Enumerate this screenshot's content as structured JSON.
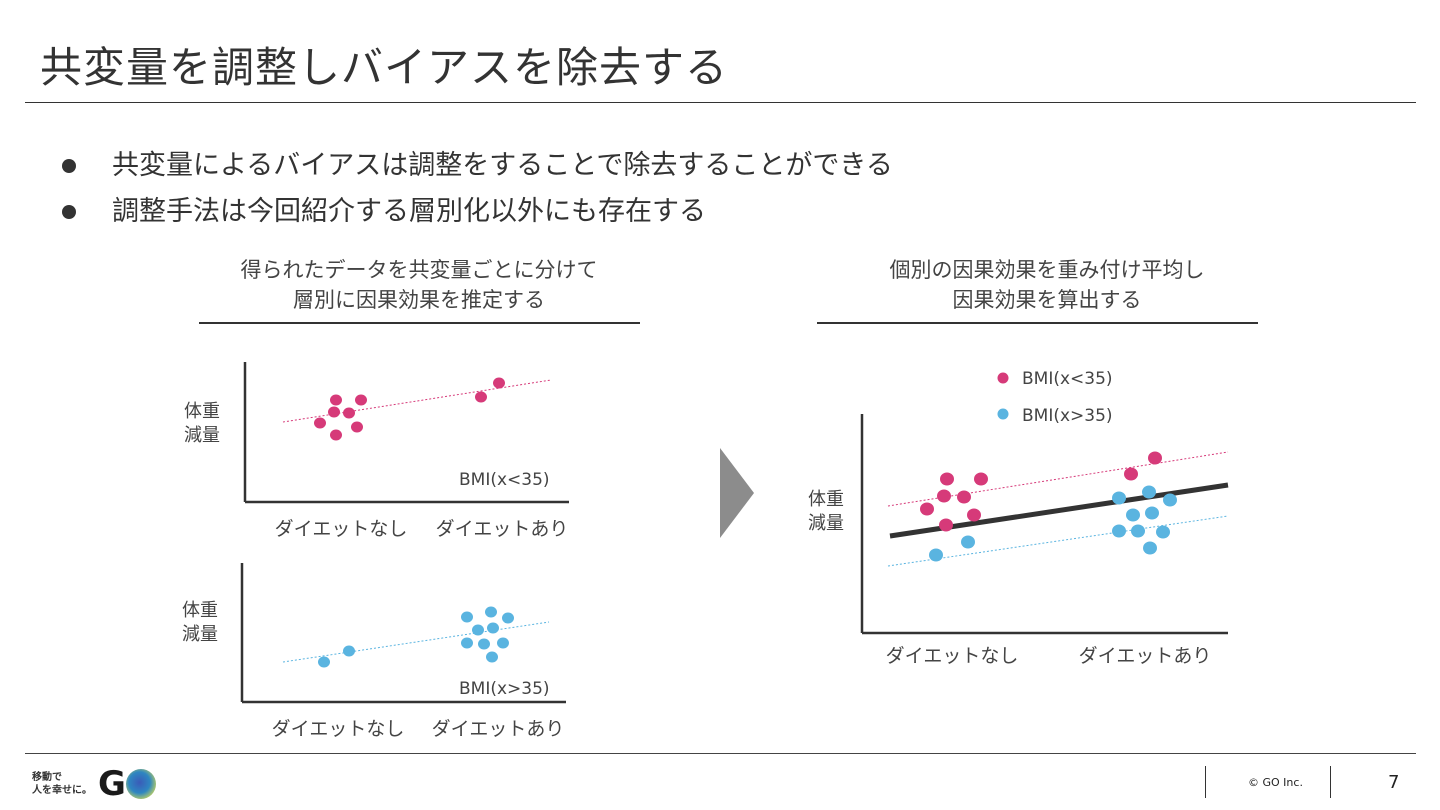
{
  "title": "共変量を調整しバイアスを除去する",
  "bullets": [
    "共変量によるバイアスは調整をすることで除去することができる",
    "調整手法は今回紹介する層別化以外にも存在する"
  ],
  "left_panel": {
    "title_line1": "得られたデータを共変量ごとに分けて",
    "title_line2": "層別に因果効果を推定する"
  },
  "right_panel": {
    "title_line1": "個別の因果効果を重み付け平均し",
    "title_line2": "因果効果を算出する"
  },
  "colors": {
    "pink": "#d63a79",
    "blue": "#5ab4e0",
    "line": "#333333",
    "arrow": "#8c8c8c"
  },
  "chart_data": [
    {
      "type": "scatter",
      "ylabel": "体重\n減量",
      "categories": [
        "ダイエットなし",
        "ダイエットあり"
      ],
      "series_label": "BMI(x<35)",
      "trend": "dotted",
      "color": "pink"
    },
    {
      "type": "scatter",
      "ylabel": "体重\n減量",
      "categories": [
        "ダイエットなし",
        "ダイエットあり"
      ],
      "series_label": "BMI(x>35)",
      "trend": "dotted",
      "color": "blue"
    },
    {
      "type": "scatter",
      "ylabel": "体重\n減量",
      "categories": [
        "ダイエットなし",
        "ダイエットあり"
      ],
      "legend": [
        "BMI(x<35)",
        "BMI(x>35)"
      ],
      "trend": "solid weighted average",
      "colors": [
        "pink",
        "blue"
      ]
    }
  ],
  "footer": {
    "logo_text_line1": "移動で",
    "logo_text_line2": "人を幸せに。",
    "logo_mark": "G",
    "copyright": "© GO Inc.",
    "page": "7"
  }
}
